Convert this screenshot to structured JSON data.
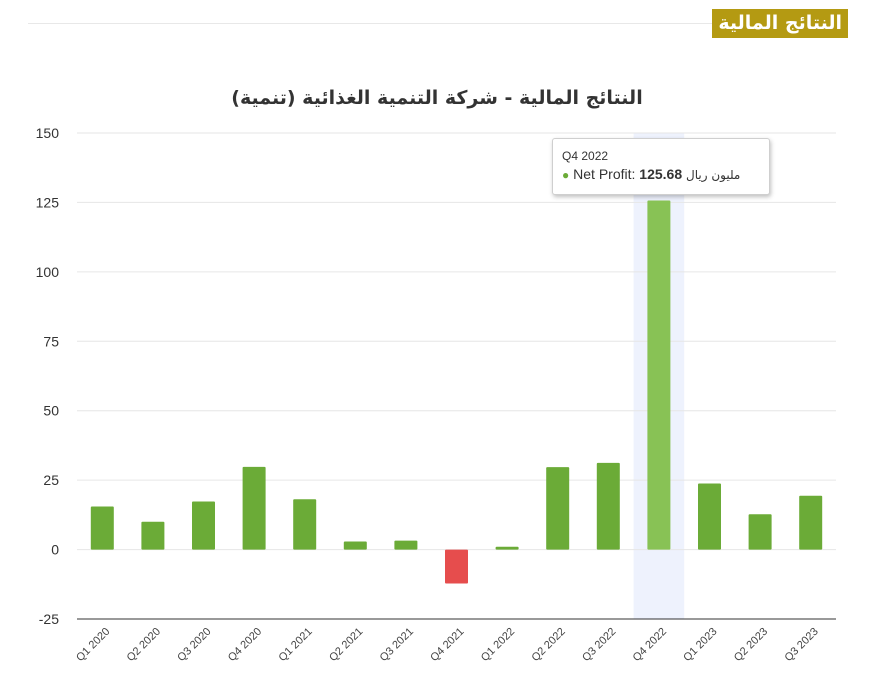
{
  "section_title": "النتائج المالية",
  "chart_data": {
    "type": "bar",
    "title": "النتائج المالية - شركة التنمية الغذائية (تنمية)",
    "categories": [
      "Q1 2020",
      "Q2 2020",
      "Q3 2020",
      "Q4 2020",
      "Q1 2021",
      "Q2 2021",
      "Q3 2021",
      "Q4 2021",
      "Q1 2022",
      "Q2 2022",
      "Q3 2022",
      "Q4 2022",
      "Q1 2023",
      "Q2 2023",
      "Q3 2023"
    ],
    "series": [
      {
        "name": "Net Profit",
        "values": [
          15.5,
          10.0,
          17.3,
          29.8,
          18.1,
          2.9,
          3.2,
          -12.2,
          1.0,
          29.7,
          31.2,
          125.68,
          23.8,
          12.7,
          19.4
        ]
      }
    ],
    "ylim": [
      -25,
      150
    ],
    "yticks": [
      150,
      125,
      100,
      75,
      50,
      25,
      0,
      -25
    ],
    "grid": true,
    "colors": {
      "positive": "#6bab37",
      "negative": "#e64d4d",
      "highlight": "#88c255",
      "hover_band": "#eef2fd"
    },
    "highlighted_category": "Q4 2022",
    "tooltip": {
      "category": "Q4 2022",
      "series_label": "Net Profit:",
      "value": "125.68",
      "unit": "مليون ريال"
    }
  }
}
